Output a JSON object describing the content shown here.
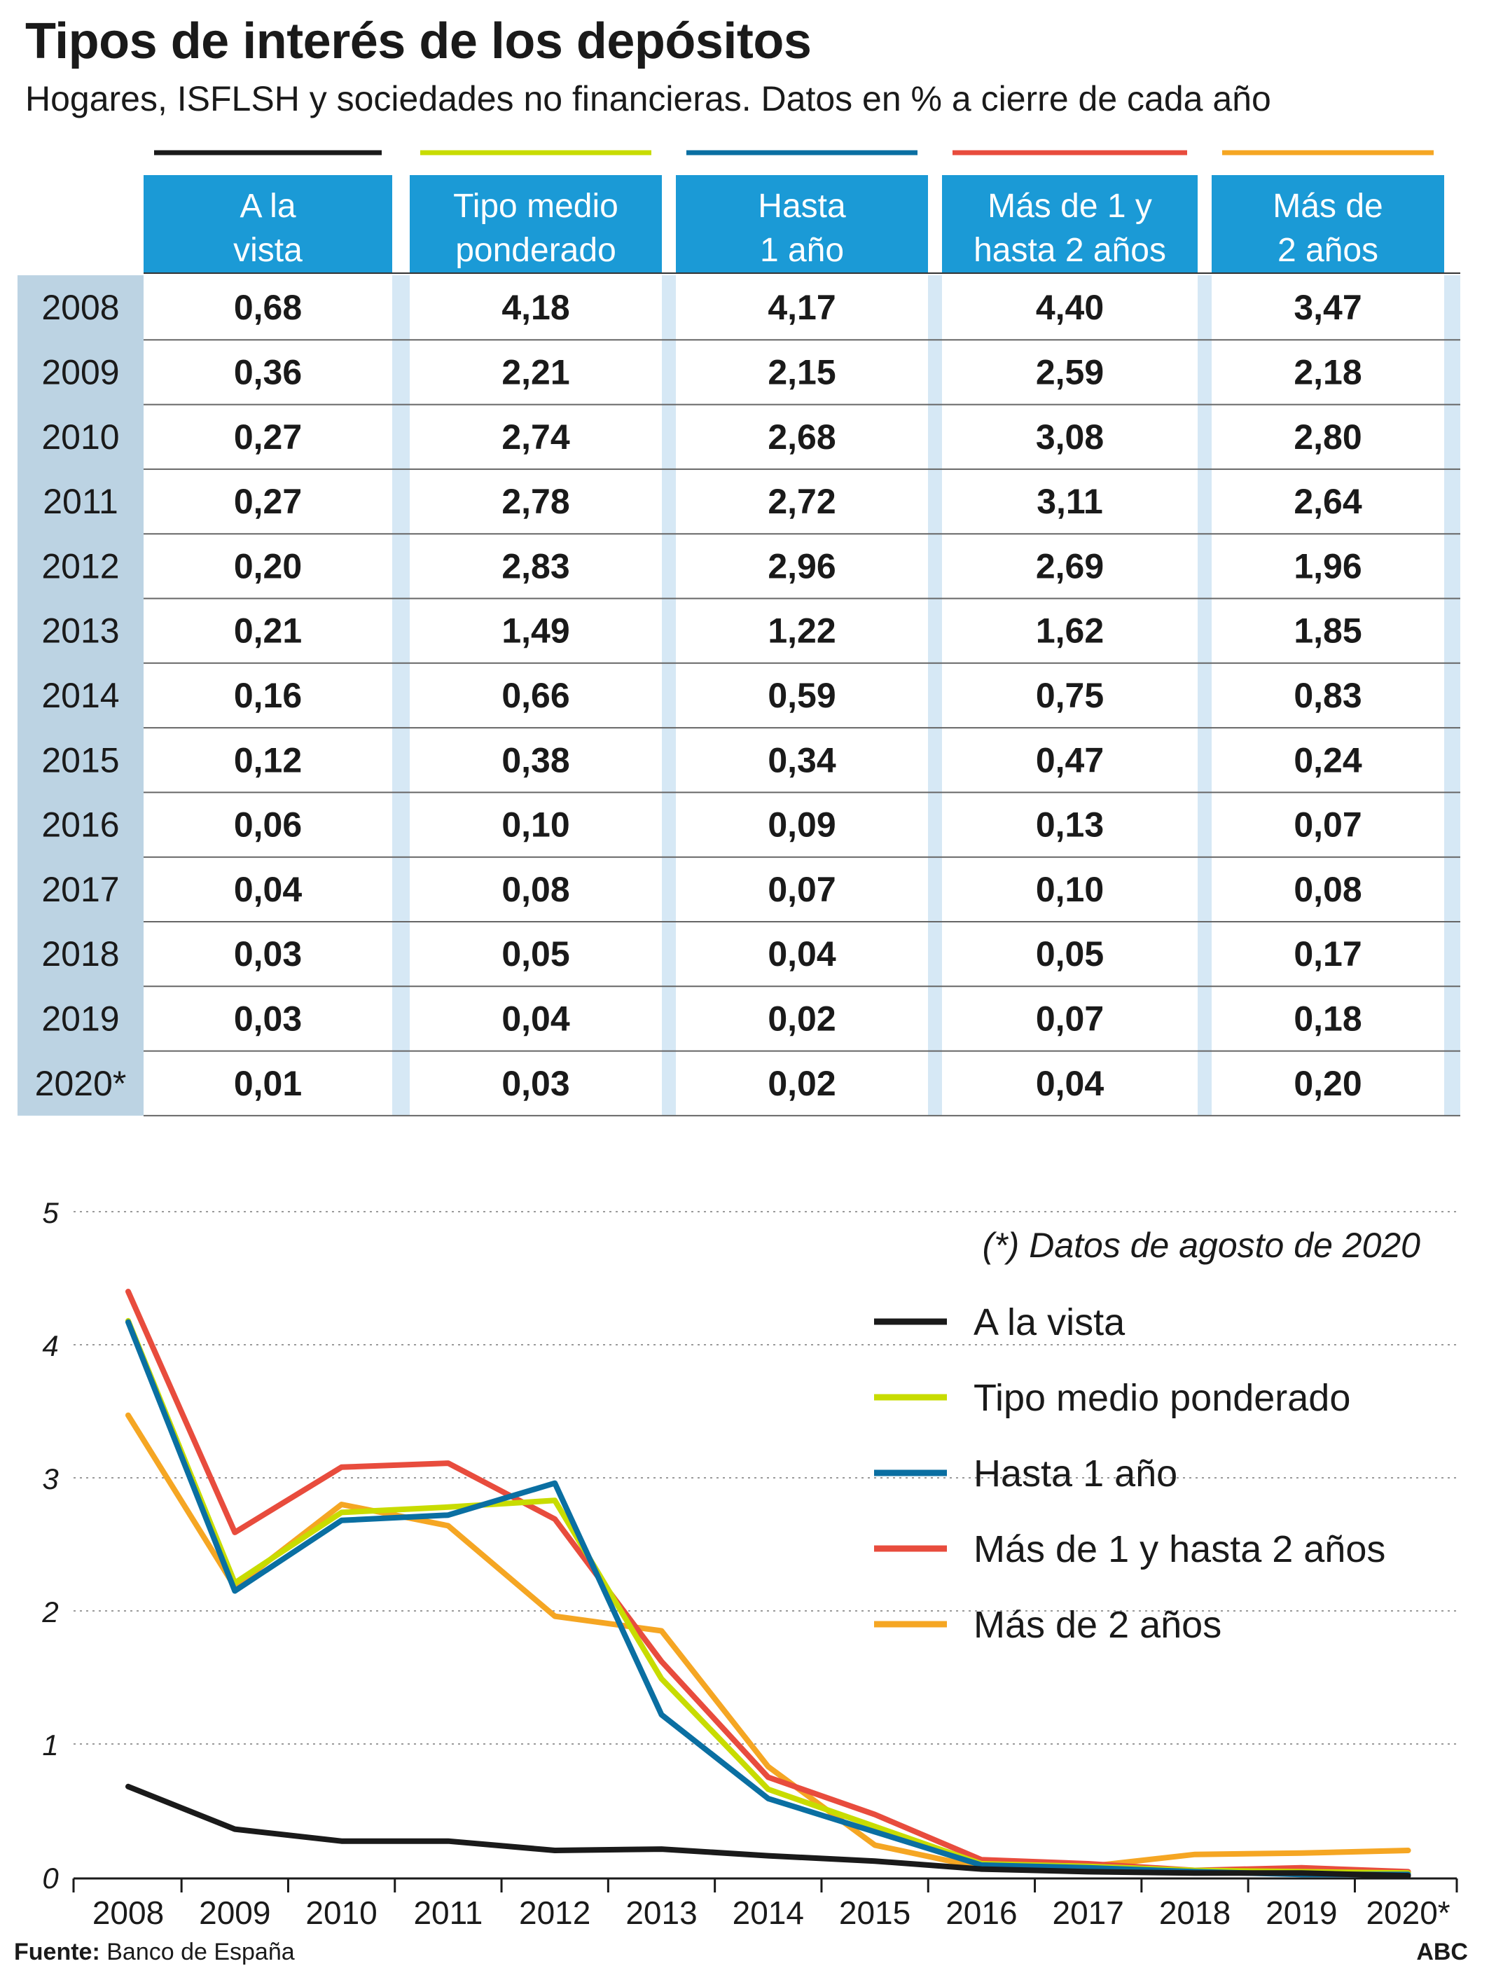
{
  "title": "Tipos de interés de los depósitos",
  "subtitle": "Hogares, ISFLSH y sociedades no financieras. Datos en % a cierre de cada año",
  "colors": {
    "header_bg": "#1b9ad6",
    "year_col_bg": "#bcd3e3",
    "stripe_bg": "#d6e8f5",
    "grid": "#9a9a9a"
  },
  "table": {
    "columns": [
      {
        "label_line1": "A  la",
        "label_line2": "vista",
        "color": "#1a1a1a"
      },
      {
        "label_line1": "Tipo medio",
        "label_line2": "ponderado",
        "color": "#c8dc00"
      },
      {
        "label_line1": "Hasta",
        "label_line2": "1 año",
        "color": "#0a6fa2"
      },
      {
        "label_line1": "Más de 1 y",
        "label_line2": "hasta 2 años",
        "color": "#e84c3d"
      },
      {
        "label_line1": "Más de",
        "label_line2": "2 años",
        "color": "#f5a623"
      }
    ],
    "rows": [
      {
        "year": "2008",
        "values": [
          "0,68",
          "4,18",
          "4,17",
          "4,40",
          "3,47"
        ]
      },
      {
        "year": "2009",
        "values": [
          "0,36",
          "2,21",
          "2,15",
          "2,59",
          "2,18"
        ]
      },
      {
        "year": "2010",
        "values": [
          "0,27",
          "2,74",
          "2,68",
          "3,08",
          "2,80"
        ]
      },
      {
        "year": "2011",
        "values": [
          "0,27",
          "2,78",
          "2,72",
          "3,11",
          "2,64"
        ]
      },
      {
        "year": "2012",
        "values": [
          "0,20",
          "2,83",
          "2,96",
          "2,69",
          "1,96"
        ]
      },
      {
        "year": "2013",
        "values": [
          "0,21",
          "1,49",
          "1,22",
          "1,62",
          "1,85"
        ]
      },
      {
        "year": "2014",
        "values": [
          "0,16",
          "0,66",
          "0,59",
          "0,75",
          "0,83"
        ]
      },
      {
        "year": "2015",
        "values": [
          "0,12",
          "0,38",
          "0,34",
          "0,47",
          "0,24"
        ]
      },
      {
        "year": "2016",
        "values": [
          "0,06",
          "0,10",
          "0,09",
          "0,13",
          "0,07"
        ]
      },
      {
        "year": "2017",
        "values": [
          "0,04",
          "0,08",
          "0,07",
          "0,10",
          "0,08"
        ]
      },
      {
        "year": "2018",
        "values": [
          "0,03",
          "0,05",
          "0,04",
          "0,05",
          "0,17"
        ]
      },
      {
        "year": "2019",
        "values": [
          "0,03",
          "0,04",
          "0,02",
          "0,07",
          "0,18"
        ]
      },
      {
        "year": "2020*",
        "values": [
          "0,01",
          "0,03",
          "0,02",
          "0,04",
          "0,20"
        ]
      }
    ]
  },
  "chart_data": {
    "type": "line",
    "x": [
      "2008",
      "2009",
      "2010",
      "2011",
      "2012",
      "2013",
      "2014",
      "2015",
      "2016",
      "2017",
      "2018",
      "2019",
      "2020*"
    ],
    "ylim": [
      0,
      5
    ],
    "yticks": [
      "0",
      "1",
      "2",
      "3",
      "4",
      "5"
    ],
    "grid": "horizontal dotted",
    "legend_placement": "top-right",
    "annotation": "(*) Datos de agosto de 2020",
    "series": [
      {
        "name": "A  la vista",
        "color": "#1a1a1a",
        "values": [
          0.68,
          0.36,
          0.27,
          0.27,
          0.2,
          0.21,
          0.16,
          0.12,
          0.06,
          0.04,
          0.03,
          0.03,
          0.01
        ]
      },
      {
        "name": "Tipo medio ponderado",
        "color": "#c8dc00",
        "values": [
          4.18,
          2.21,
          2.74,
          2.78,
          2.83,
          1.49,
          0.66,
          0.38,
          0.1,
          0.08,
          0.05,
          0.04,
          0.03
        ]
      },
      {
        "name": "Hasta 1 año",
        "color": "#0a6fa2",
        "values": [
          4.17,
          2.15,
          2.68,
          2.72,
          2.96,
          1.22,
          0.59,
          0.34,
          0.09,
          0.07,
          0.04,
          0.02,
          0.02
        ]
      },
      {
        "name": "Más de 1 y hasta 2 años",
        "color": "#e84c3d",
        "values": [
          4.4,
          2.59,
          3.08,
          3.11,
          2.69,
          1.62,
          0.75,
          0.47,
          0.13,
          0.1,
          0.05,
          0.07,
          0.04
        ]
      },
      {
        "name": "Más de 2 años",
        "color": "#f5a623",
        "values": [
          3.47,
          2.18,
          2.8,
          2.64,
          1.96,
          1.85,
          0.83,
          0.24,
          0.07,
          0.08,
          0.17,
          0.18,
          0.2
        ]
      }
    ]
  },
  "footer": {
    "source_label": "Fuente:",
    "source_text": " Banco de España",
    "brand": "ABC"
  }
}
